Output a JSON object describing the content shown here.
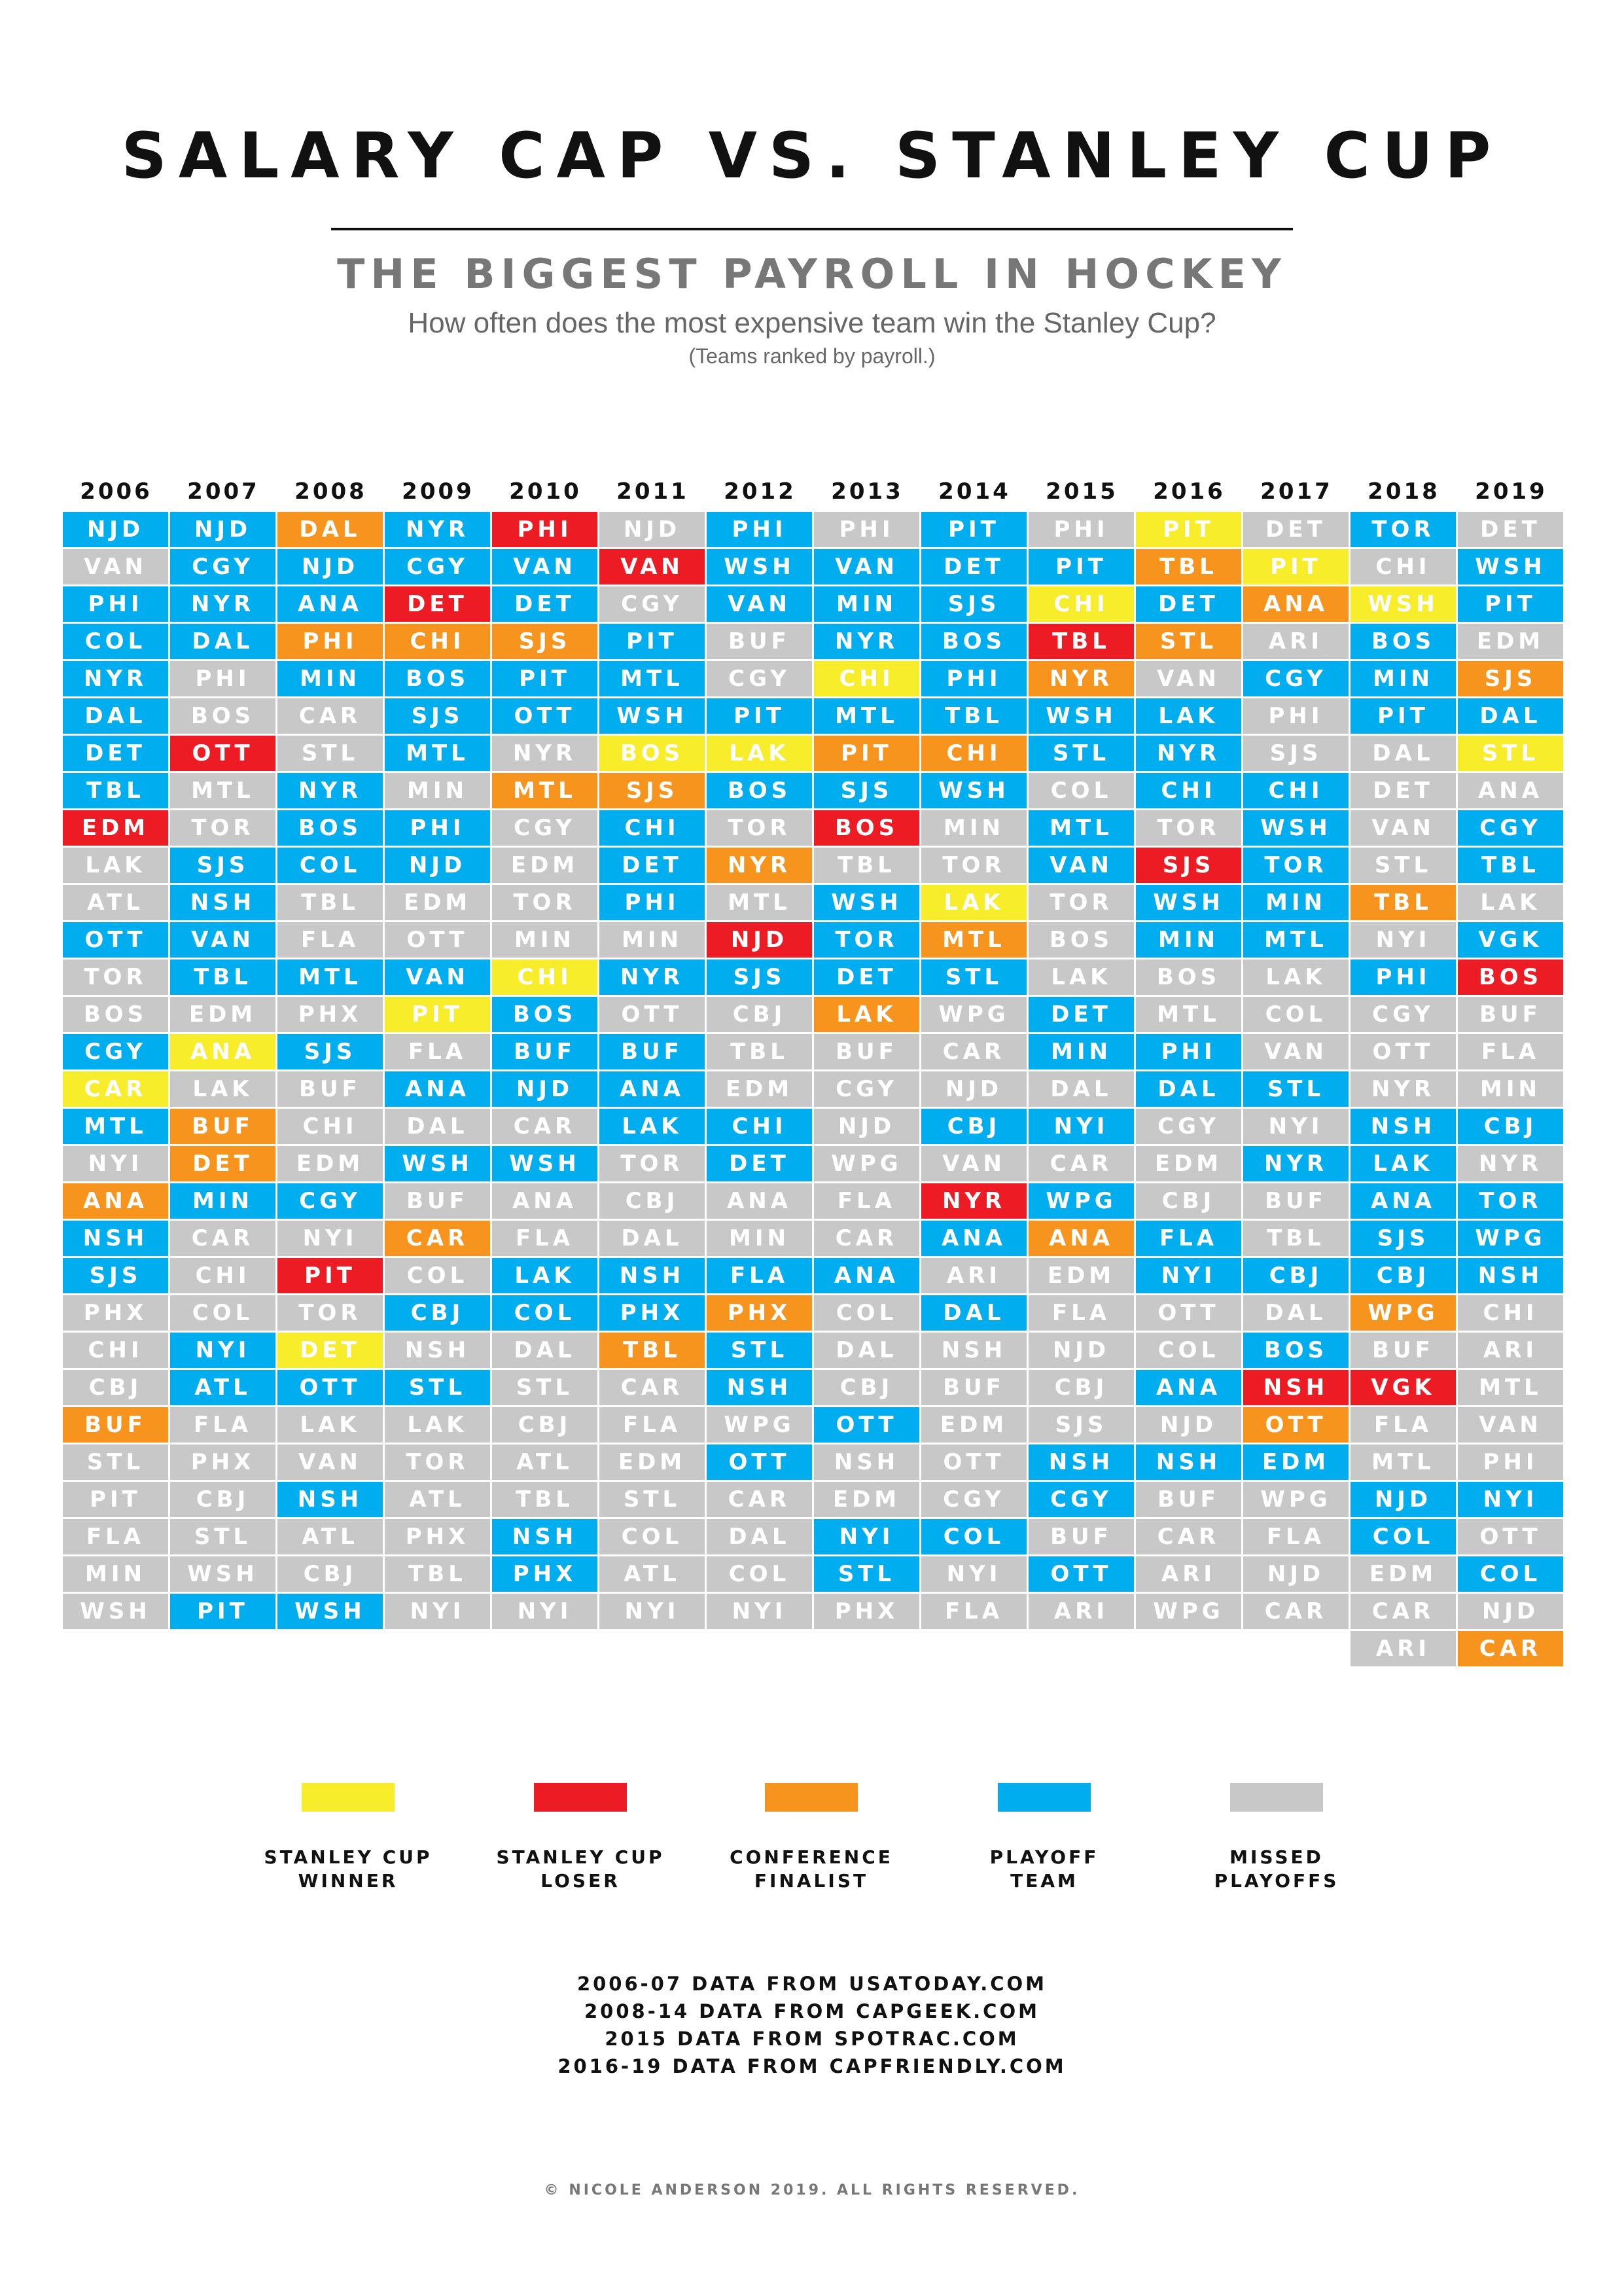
{
  "title": "SALARY CAP VS. STANLEY CUP",
  "subtitle": "THE BIGGEST PAYROLL IN HOCKEY",
  "question": "How often does the most expensive team win the Stanley Cup?",
  "note": "(Teams ranked by payroll.)",
  "colors": {
    "W": "#f7ed2a",
    "L": "#ed1c24",
    "C": "#f7941d",
    "P": "#00aeef",
    "M": "#c8c8c8"
  },
  "chart_data": {
    "type": "table",
    "years": [
      "2006",
      "2007",
      "2008",
      "2009",
      "2010",
      "2011",
      "2012",
      "2013",
      "2014",
      "2015",
      "2016",
      "2017",
      "2018",
      "2019"
    ],
    "columns": [
      [
        "P:NJD",
        "M:VAN",
        "P:PHI",
        "P:COL",
        "P:NYR",
        "P:DAL",
        "P:DET",
        "P:TBL",
        "L:EDM",
        "M:LAK",
        "M:ATL",
        "P:OTT",
        "M:TOR",
        "M:BOS",
        "P:CGY",
        "W:CAR",
        "P:MTL",
        "M:NYI",
        "C:ANA",
        "P:NSH",
        "P:SJS",
        "M:PHX",
        "M:CHI",
        "M:CBJ",
        "C:BUF",
        "M:STL",
        "M:PIT",
        "M:FLA",
        "M:MIN",
        "M:WSH"
      ],
      [
        "P:NJD",
        "P:CGY",
        "P:NYR",
        "P:DAL",
        "M:PHI",
        "M:BOS",
        "L:OTT",
        "M:MTL",
        "M:TOR",
        "P:SJS",
        "P:NSH",
        "P:VAN",
        "P:TBL",
        "M:EDM",
        "W:ANA",
        "M:LAK",
        "C:BUF",
        "C:DET",
        "P:MIN",
        "M:CAR",
        "M:CHI",
        "M:COL",
        "P:NYI",
        "P:ATL",
        "M:FLA",
        "M:PHX",
        "M:CBJ",
        "M:STL",
        "M:WSH",
        "P:PIT"
      ],
      [
        "C:DAL",
        "P:NJD",
        "P:ANA",
        "C:PHI",
        "P:MIN",
        "M:CAR",
        "M:STL",
        "P:NYR",
        "P:BOS",
        "P:COL",
        "M:TBL",
        "M:FLA",
        "P:MTL",
        "M:PHX",
        "P:SJS",
        "M:BUF",
        "M:CHI",
        "M:EDM",
        "P:CGY",
        "M:NYI",
        "L:PIT",
        "M:TOR",
        "W:DET",
        "P:OTT",
        "M:LAK",
        "M:VAN",
        "P:NSH",
        "M:ATL",
        "M:CBJ",
        "P:WSH"
      ],
      [
        "P:NYR",
        "P:CGY",
        "L:DET",
        "C:CHI",
        "P:BOS",
        "P:SJS",
        "P:MTL",
        "M:MIN",
        "P:PHI",
        "P:NJD",
        "M:EDM",
        "M:OTT",
        "P:VAN",
        "W:PIT",
        "M:FLA",
        "P:ANA",
        "M:DAL",
        "P:WSH",
        "M:BUF",
        "C:CAR",
        "M:COL",
        "P:CBJ",
        "M:NSH",
        "P:STL",
        "M:LAK",
        "M:TOR",
        "M:ATL",
        "M:PHX",
        "M:TBL",
        "M:NYI"
      ],
      [
        "L:PHI",
        "P:VAN",
        "P:DET",
        "C:SJS",
        "P:PIT",
        "P:OTT",
        "M:NYR",
        "C:MTL",
        "M:CGY",
        "M:EDM",
        "M:TOR",
        "M:MIN",
        "W:CHI",
        "P:BOS",
        "P:BUF",
        "P:NJD",
        "M:CAR",
        "P:WSH",
        "M:ANA",
        "M:FLA",
        "P:LAK",
        "P:COL",
        "M:DAL",
        "M:STL",
        "M:CBJ",
        "M:ATL",
        "M:TBL",
        "P:NSH",
        "P:PHX",
        "M:NYI"
      ],
      [
        "M:NJD",
        "L:VAN",
        "M:CGY",
        "P:PIT",
        "P:MTL",
        "P:WSH",
        "W:BOS",
        "C:SJS",
        "P:CHI",
        "P:DET",
        "P:PHI",
        "M:MIN",
        "P:NYR",
        "M:OTT",
        "P:BUF",
        "P:ANA",
        "P:LAK",
        "M:TOR",
        "M:CBJ",
        "M:DAL",
        "P:NSH",
        "P:PHX",
        "C:TBL",
        "M:CAR",
        "M:FLA",
        "M:EDM",
        "M:STL",
        "M:COL",
        "M:ATL",
        "M:NYI"
      ],
      [
        "P:PHI",
        "P:WSH",
        "P:VAN",
        "M:BUF",
        "M:CGY",
        "P:PIT",
        "W:LAK",
        "P:BOS",
        "M:TOR",
        "C:NYR",
        "M:MTL",
        "L:NJD",
        "P:SJS",
        "M:CBJ",
        "M:TBL",
        "M:EDM",
        "P:CHI",
        "P:DET",
        "M:ANA",
        "M:MIN",
        "P:FLA",
        "C:PHX",
        "P:STL",
        "P:NSH",
        "M:WPG",
        "P:OTT",
        "M:CAR",
        "M:DAL",
        "M:COL",
        "M:NYI"
      ],
      [
        "M:PHI",
        "P:VAN",
        "P:MIN",
        "P:NYR",
        "W:CHI",
        "P:MTL",
        "C:PIT",
        "P:SJS",
        "L:BOS",
        "M:TBL",
        "P:WSH",
        "P:TOR",
        "P:DET",
        "C:LAK",
        "M:BUF",
        "M:CGY",
        "M:NJD",
        "M:WPG",
        "M:FLA",
        "M:CAR",
        "P:ANA",
        "M:COL",
        "M:DAL",
        "M:CBJ",
        "P:OTT",
        "M:NSH",
        "M:EDM",
        "P:NYI",
        "P:STL",
        "M:PHX"
      ],
      [
        "P:PIT",
        "P:DET",
        "P:SJS",
        "P:BOS",
        "P:PHI",
        "P:TBL",
        "C:CHI",
        "P:WSH",
        "M:MIN",
        "M:TOR",
        "W:LAK",
        "C:MTL",
        "P:STL",
        "M:WPG",
        "M:CAR",
        "M:NJD",
        "P:CBJ",
        "M:VAN",
        "L:NYR",
        "P:ANA",
        "M:ARI",
        "P:DAL",
        "M:NSH",
        "M:BUF",
        "M:EDM",
        "M:OTT",
        "M:CGY",
        "P:COL",
        "M:NYI",
        "M:FLA"
      ],
      [
        "M:PHI",
        "P:PIT",
        "W:CHI",
        "L:TBL",
        "C:NYR",
        "P:WSH",
        "P:STL",
        "M:COL",
        "P:MTL",
        "P:VAN",
        "M:TOR",
        "M:BOS",
        "M:LAK",
        "P:DET",
        "P:MIN",
        "M:DAL",
        "P:NYI",
        "M:CAR",
        "P:WPG",
        "C:ANA",
        "M:EDM",
        "M:FLA",
        "M:NJD",
        "M:CBJ",
        "M:SJS",
        "P:NSH",
        "P:CGY",
        "M:BUF",
        "P:OTT",
        "M:ARI"
      ],
      [
        "W:PIT",
        "C:TBL",
        "P:DET",
        "C:STL",
        "M:VAN",
        "P:LAK",
        "P:NYR",
        "P:CHI",
        "M:TOR",
        "L:SJS",
        "P:WSH",
        "P:MIN",
        "M:BOS",
        "M:MTL",
        "P:PHI",
        "P:DAL",
        "M:CGY",
        "M:EDM",
        "M:CBJ",
        "P:FLA",
        "P:NYI",
        "M:OTT",
        "M:COL",
        "P:ANA",
        "M:NJD",
        "P:NSH",
        "M:BUF",
        "M:CAR",
        "M:ARI",
        "M:WPG"
      ],
      [
        "M:DET",
        "W:PIT",
        "C:ANA",
        "M:ARI",
        "P:CGY",
        "M:PHI",
        "M:SJS",
        "P:CHI",
        "P:WSH",
        "P:TOR",
        "P:MIN",
        "P:MTL",
        "M:LAK",
        "M:COL",
        "M:VAN",
        "P:STL",
        "M:NYI",
        "P:NYR",
        "M:BUF",
        "M:TBL",
        "P:CBJ",
        "M:DAL",
        "P:BOS",
        "L:NSH",
        "C:OTT",
        "P:EDM",
        "M:WPG",
        "M:FLA",
        "M:NJD",
        "M:CAR"
      ],
      [
        "P:TOR",
        "M:CHI",
        "W:WSH",
        "P:BOS",
        "P:MIN",
        "P:PIT",
        "M:DAL",
        "M:DET",
        "M:VAN",
        "M:STL",
        "C:TBL",
        "M:NYI",
        "P:PHI",
        "M:CGY",
        "M:OTT",
        "M:NYR",
        "P:NSH",
        "P:LAK",
        "P:ANA",
        "P:SJS",
        "P:CBJ",
        "C:WPG",
        "M:BUF",
        "L:VGK",
        "M:FLA",
        "M:MTL",
        "P:NJD",
        "P:COL",
        "M:EDM",
        "M:CAR",
        "M:ARI"
      ],
      [
        "M:DET",
        "P:WSH",
        "P:PIT",
        "M:EDM",
        "C:SJS",
        "P:DAL",
        "W:STL",
        "M:ANA",
        "P:CGY",
        "P:TBL",
        "M:LAK",
        "P:VGK",
        "L:BOS",
        "M:BUF",
        "M:FLA",
        "M:MIN",
        "P:CBJ",
        "M:NYR",
        "P:TOR",
        "P:WPG",
        "P:NSH",
        "M:CHI",
        "M:ARI",
        "M:MTL",
        "M:VAN",
        "M:PHI",
        "P:NYI",
        "M:OTT",
        "P:COL",
        "M:NJD",
        "C:CAR"
      ]
    ]
  },
  "legend": [
    {
      "key": "W",
      "label": "STANLEY CUP\nWINNER"
    },
    {
      "key": "L",
      "label": "STANLEY CUP\nLOSER"
    },
    {
      "key": "C",
      "label": "CONFERENCE\nFINALIST"
    },
    {
      "key": "P",
      "label": "PLAYOFF\nTEAM"
    },
    {
      "key": "M",
      "label": "MISSED\nPLAYOFFS"
    }
  ],
  "sources": [
    "2006-07 DATA FROM USATODAY.COM",
    "2008-14 DATA FROM CAPGEEK.COM",
    "2015 DATA FROM SPOTRAC.COM",
    "2016-19 DATA FROM CAPFRIENDLY.COM"
  ],
  "copyright": "© NICOLE ANDERSON 2019. ALL RIGHTS RESERVED."
}
